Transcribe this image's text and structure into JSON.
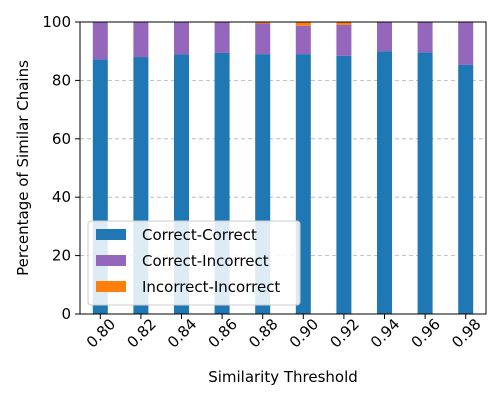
{
  "chart_data": {
    "type": "bar",
    "stacked": true,
    "categories": [
      "0.80",
      "0.82",
      "0.84",
      "0.86",
      "0.88",
      "0.90",
      "0.92",
      "0.94",
      "0.96",
      "0.98"
    ],
    "series": [
      {
        "name": "Correct-Correct",
        "color": "#1f77b4",
        "values": [
          87.2,
          88.0,
          88.9,
          89.4,
          89.0,
          89.0,
          88.4,
          90.0,
          89.6,
          85.3
        ]
      },
      {
        "name": "Correct-Incorrect",
        "color": "#9467bd",
        "values": [
          12.8,
          12.0,
          11.1,
          10.6,
          10.5,
          9.7,
          10.6,
          10.0,
          10.4,
          14.7
        ]
      },
      {
        "name": "Incorrect-Incorrect",
        "color": "#ff7f0e",
        "values": [
          0,
          0,
          0,
          0,
          0.5,
          1.3,
          1.0,
          0,
          0,
          0
        ]
      }
    ],
    "xlabel": "Similarity Threshold",
    "ylabel": "Percentage of Similar Chains",
    "ylim": [
      0,
      100
    ],
    "yticks": [
      0,
      20,
      40,
      60,
      80,
      100
    ],
    "grid": "y-dashed",
    "legend_position": "lower-left"
  }
}
